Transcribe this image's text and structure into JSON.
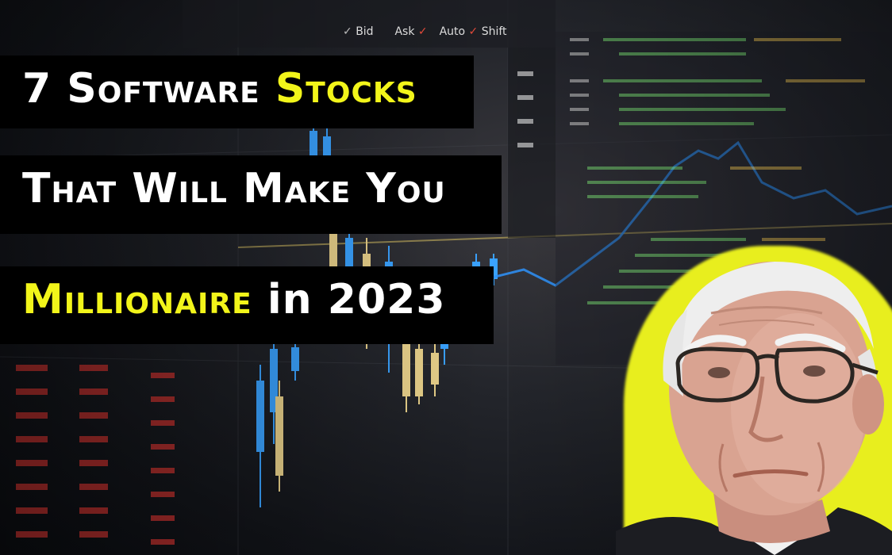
{
  "headline": {
    "line1": {
      "part1": "7 Software ",
      "part2": "Stocks"
    },
    "line2": {
      "text": "That Will Make You"
    },
    "line3": {
      "part1": "Millionaire",
      "part2": " in 2023"
    }
  },
  "ticker_labels": {
    "bid": "Bid",
    "ask": "Ask",
    "auto": "Auto",
    "shift": "Shift"
  },
  "colors": {
    "headline_bg": "#000000",
    "headline_text": "#ffffff",
    "accent_yellow": "#f2f51a",
    "candle_up": "#3aa2ff",
    "candle_down": "#e8d08a"
  }
}
